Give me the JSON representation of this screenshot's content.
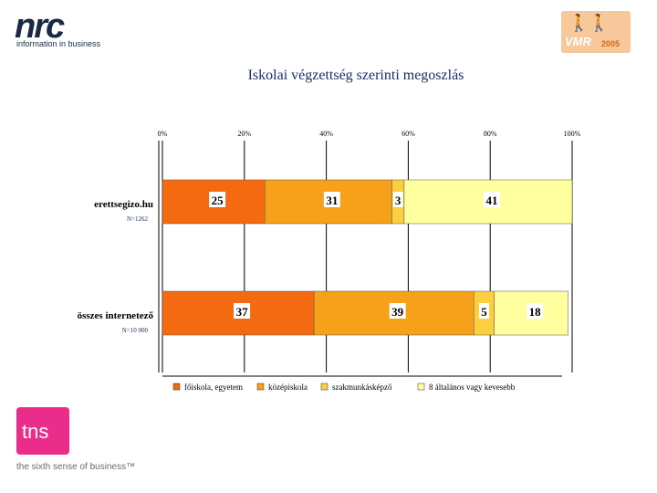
{
  "header": {
    "left_logo": {
      "word": "nrc",
      "tagline": "information in business"
    },
    "right_logo": {
      "word": "VMR",
      "year": "2005"
    }
  },
  "footer_logo": {
    "word": "tns",
    "tagline": "the sixth sense of business™"
  },
  "colors": {
    "title": "#1c2e6e",
    "series": [
      "#f36a10",
      "#f7a01a",
      "#fbcf40",
      "#ffffa0"
    ],
    "tns": "#ea2c8a"
  },
  "chart_data": {
    "type": "bar",
    "orientation": "horizontal",
    "stacked": true,
    "title": "Iskolai végzettség szerinti megoszlás",
    "x_ticks": [
      "0%",
      "20%",
      "40%",
      "60%",
      "80%",
      "100%"
    ],
    "xlim": [
      0,
      100
    ],
    "categories": [
      {
        "label": "erettsegizo.hu",
        "n_label": "N=1262"
      },
      {
        "label": "összes internetező",
        "n_label": "N=10 000"
      }
    ],
    "series": [
      {
        "name": "főiskola, egyetem",
        "values": [
          25,
          37
        ]
      },
      {
        "name": "középiskola",
        "values": [
          31,
          39
        ]
      },
      {
        "name": "szakmunkásképző",
        "values": [
          3,
          5
        ]
      },
      {
        "name": "8 általános vagy kevesebb",
        "values": [
          41,
          18
        ]
      }
    ],
    "grid": "vertical",
    "legend_position": "bottom"
  }
}
